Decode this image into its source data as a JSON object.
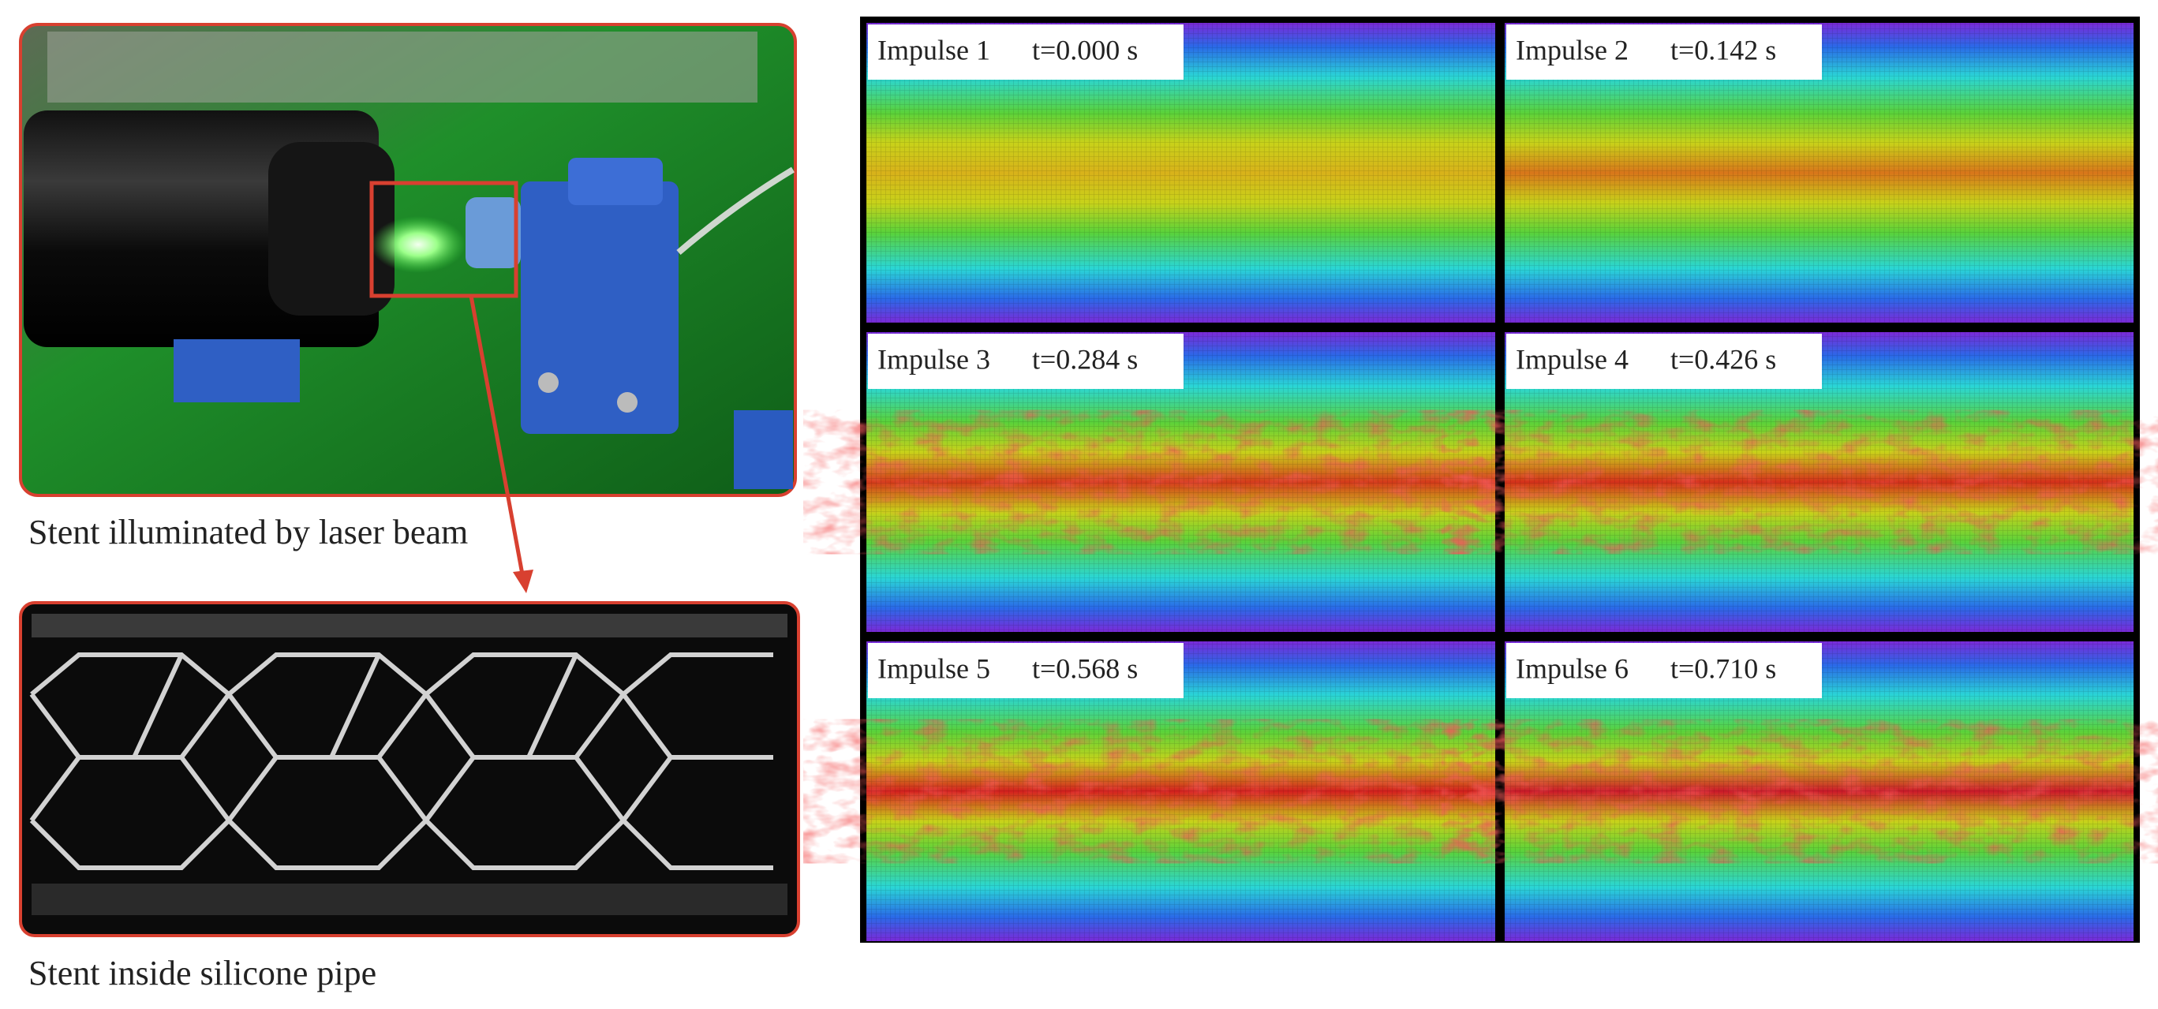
{
  "left": {
    "caption_top": "Stent illuminated by laser beam",
    "caption_bottom": "Stent inside silicone pipe"
  },
  "panels": [
    {
      "label": "Impulse 1",
      "time": "t=0.000 s"
    },
    {
      "label": "Impulse 2",
      "time": "t=0.142 s"
    },
    {
      "label": "Impulse 3",
      "time": "t=0.284 s"
    },
    {
      "label": "Impulse 4",
      "time": "t=0.426 s"
    },
    {
      "label": "Impulse 5",
      "time": "t=0.568 s"
    },
    {
      "label": "Impulse 6",
      "time": "t=0.710 s"
    }
  ]
}
